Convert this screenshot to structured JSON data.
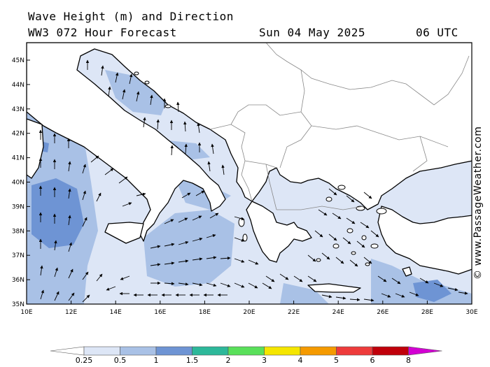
{
  "header": {
    "title_line1": "Wave Height (m) and Direction",
    "title_line2": "WW3 072 Hour Forecast",
    "date": "Sun 04 May 2025",
    "time": "06 UTC"
  },
  "credit": "© www.PassageWeather.com",
  "axes": {
    "lat_labels": [
      "45N",
      "44N",
      "43N",
      "42N",
      "41N",
      "40N",
      "39N",
      "38N",
      "37N",
      "36N",
      "35N"
    ],
    "lon_labels": [
      "10E",
      "12E",
      "14E",
      "16E",
      "18E",
      "20E",
      "22E",
      "24E",
      "26E",
      "28E",
      "30E"
    ]
  },
  "legend": {
    "labels": [
      "0.25",
      "0.5",
      "1",
      "1.5",
      "2",
      "3",
      "4",
      "5",
      "6",
      "8"
    ],
    "colors": [
      "#ffffff",
      "#dde6f6",
      "#a9c1e6",
      "#6e94d4",
      "#2db89a",
      "#59e05a",
      "#f5e600",
      "#f59a00",
      "#ee3b3b",
      "#c0000a",
      "#d300d3"
    ]
  },
  "colors": {
    "land": "#ffffff",
    "sea_low": "#dde6f6",
    "sea_mid": "#a9c1e6",
    "sea_high": "#6e94d4",
    "border": "#888888",
    "coast": "#000000"
  }
}
